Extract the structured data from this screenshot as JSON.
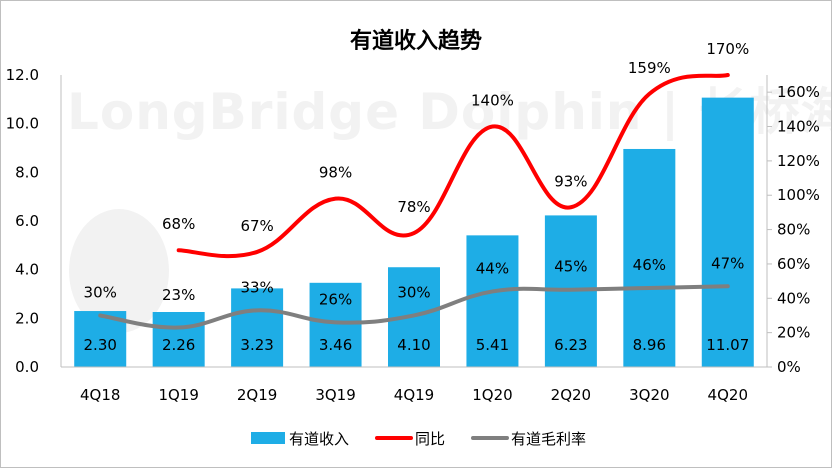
{
  "chart_data": {
    "type": "bar",
    "title": "有道收入趋势",
    "categories": [
      "4Q18",
      "1Q19",
      "2Q19",
      "3Q19",
      "4Q19",
      "1Q20",
      "2Q20",
      "3Q20",
      "4Q20"
    ],
    "series": [
      {
        "name": "有道收入",
        "kind": "bar",
        "axis": "left",
        "color": "#1EADE6",
        "values": [
          2.3,
          2.26,
          3.23,
          3.46,
          4.1,
          5.41,
          6.23,
          8.96,
          11.07
        ],
        "labels": [
          "2.30",
          "2.26",
          "3.23",
          "3.46",
          "4.10",
          "5.41",
          "6.23",
          "8.96",
          "11.07"
        ]
      },
      {
        "name": "同比",
        "kind": "line",
        "axis": "right",
        "color": "#FF0000",
        "values": [
          null,
          68,
          67,
          98,
          78,
          140,
          93,
          159,
          170
        ],
        "labels": [
          null,
          "68%",
          "67%",
          "98%",
          "78%",
          "140%",
          "93%",
          "159%",
          "170%"
        ]
      },
      {
        "name": "有道毛利率",
        "kind": "line",
        "axis": "right",
        "color": "#7F7F7F",
        "values": [
          30,
          23,
          33,
          26,
          30,
          44,
          45,
          46,
          47
        ],
        "labels": [
          "30%",
          "23%",
          "33%",
          "26%",
          "30%",
          "44%",
          "45%",
          "46%",
          "47%"
        ]
      }
    ],
    "y_left": {
      "min": 0,
      "max": 12,
      "step": 2,
      "tick_labels": [
        "0.0",
        "2.0",
        "4.0",
        "6.0",
        "8.0",
        "10.0",
        "12.0"
      ]
    },
    "y_right": {
      "min": 0,
      "max": 170,
      "step": 20,
      "tick_labels": [
        "0%",
        "20%",
        "40%",
        "60%",
        "80%",
        "100%",
        "120%",
        "140%",
        "160%"
      ]
    },
    "legend_position": "bottom",
    "grid": false,
    "watermark": "LongBridge Dolphin | 长桥海豚投研"
  }
}
